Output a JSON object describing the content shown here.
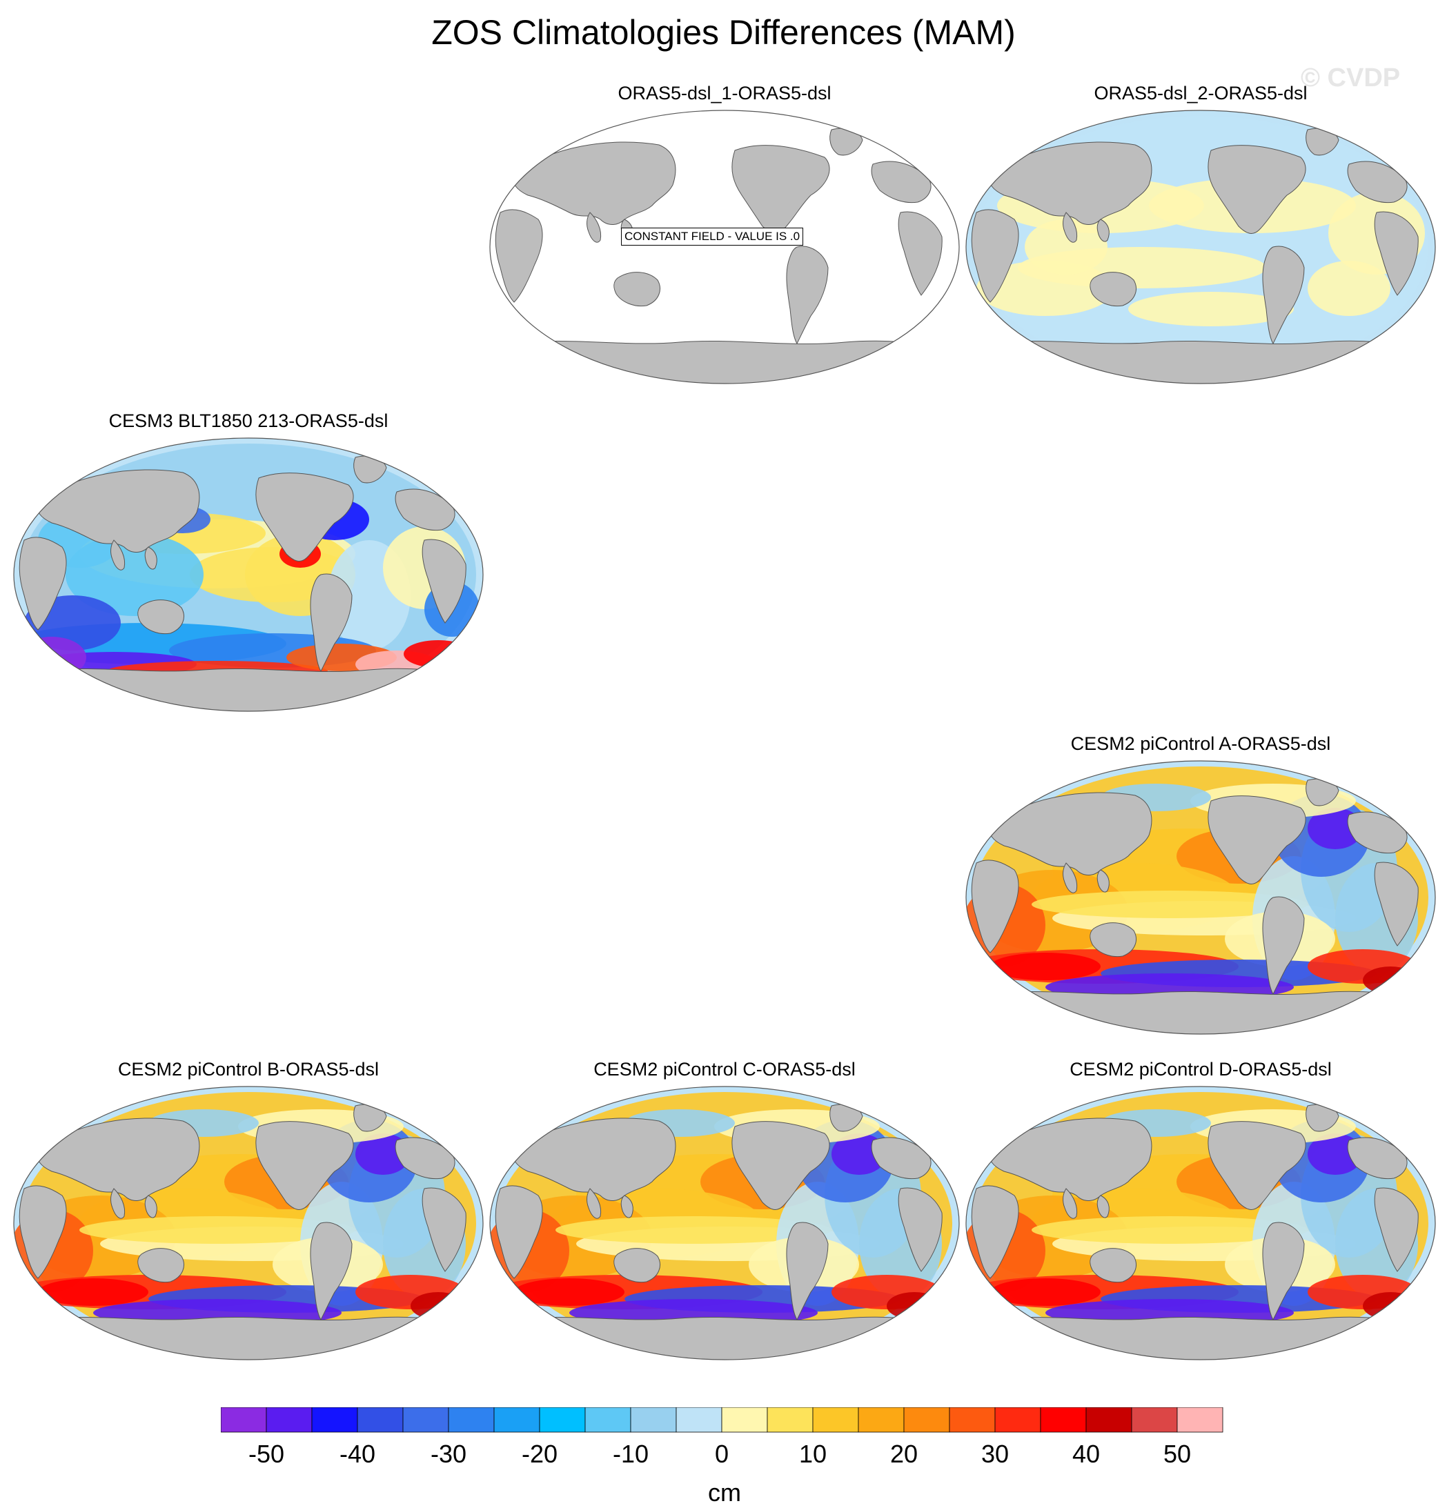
{
  "title": "ZOS Climatologies Differences (MAM)",
  "watermark": "© CVDP",
  "panels": [
    {
      "id": "p1",
      "title": "ORAS5-dsl_1-ORAS5-dsl",
      "pattern": "constant",
      "note": "CONSTANT FIELD - VALUE IS .0"
    },
    {
      "id": "p2",
      "title": "ORAS5-dsl_2-ORAS5-dsl",
      "pattern": "small"
    },
    {
      "id": "p3",
      "title": "CESM3 BLT1850 213-ORAS5-dsl",
      "pattern": "cesm3"
    },
    {
      "id": "p4",
      "title": "CESM2 piControl A-ORAS5-dsl",
      "pattern": "cesm2"
    },
    {
      "id": "p5",
      "title": "CESM2 piControl B-ORAS5-dsl",
      "pattern": "cesm2"
    },
    {
      "id": "p6",
      "title": "CESM2 piControl C-ORAS5-dsl",
      "pattern": "cesm2"
    },
    {
      "id": "p7",
      "title": "CESM2 piControl D-ORAS5-dsl",
      "pattern": "cesm2"
    }
  ],
  "colorbar": {
    "unit": "cm",
    "colors": [
      "#8b2be2",
      "#5a1cf0",
      "#1414ff",
      "#3250e6",
      "#3c6eea",
      "#2e82f0",
      "#1aa0f5",
      "#00bfff",
      "#5ec8f5",
      "#98d0ef",
      "#bfe3f7",
      "#fff7b0",
      "#fde35a",
      "#fcc628",
      "#fca814",
      "#fd8a0e",
      "#fd5a10",
      "#ff2a10",
      "#ff0000",
      "#c80000",
      "#dc4646",
      "#ffb4b4"
    ],
    "ticks": [
      "-50",
      "-40",
      "-30",
      "-20",
      "-10",
      "0",
      "10",
      "20",
      "30",
      "40",
      "50"
    ]
  },
  "colors": {
    "land": "#bdbdbd",
    "ocean_blank": "#ffffff"
  }
}
